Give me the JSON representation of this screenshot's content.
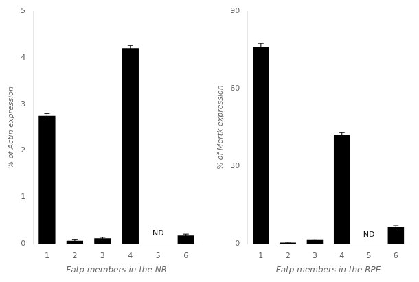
{
  "chart_data": [
    {
      "type": "bar",
      "xlabel": "Fatp members in the NR",
      "ylabel": "% of Actin expression",
      "categories": [
        "1",
        "2",
        "3",
        "4",
        "5",
        "6"
      ],
      "values": [
        2.75,
        0.07,
        0.12,
        4.2,
        0.0,
        0.18
      ],
      "errors": [
        0.05,
        0.02,
        0.02,
        0.06,
        0.0,
        0.03
      ],
      "color": "#000000",
      "ylim": [
        0,
        5
      ],
      "yticks": [
        0,
        1,
        2,
        3,
        4,
        5
      ],
      "grid": false,
      "annotations": [
        {
          "text": "ND",
          "x": "5",
          "y": 0.15
        }
      ]
    },
    {
      "type": "bar",
      "xlabel": "Fatp members in the RPE",
      "ylabel": "% of Mertk expression",
      "categories": [
        "1",
        "2",
        "3",
        "4",
        "5",
        "6"
      ],
      "values": [
        76.0,
        0.5,
        1.5,
        42.0,
        0.0,
        6.5
      ],
      "errors": [
        1.5,
        0.2,
        0.3,
        1.0,
        0.0,
        0.5
      ],
      "color": "#000000",
      "ylim": [
        0,
        90
      ],
      "yticks": [
        0,
        30,
        60,
        90
      ],
      "grid": false,
      "annotations": [
        {
          "text": "ND",
          "x": "5",
          "y": 2.0
        }
      ]
    }
  ]
}
